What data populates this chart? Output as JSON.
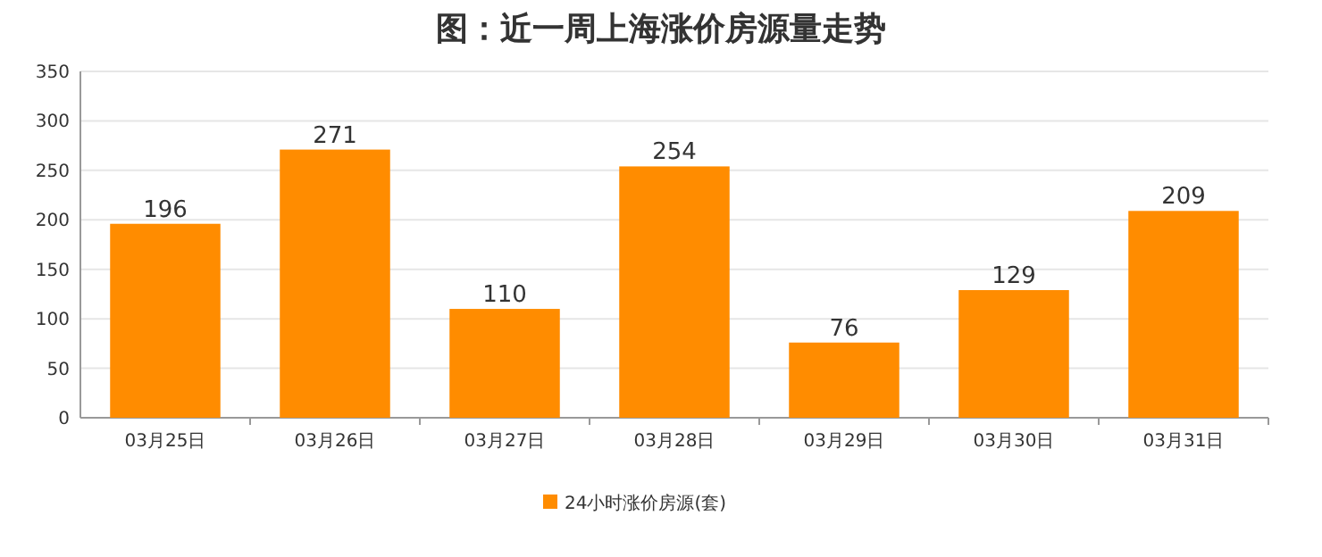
{
  "chart_data": {
    "type": "bar",
    "title": "图：近一周上海涨价房源量走势",
    "categories": [
      "03月25日",
      "03月26日",
      "03月27日",
      "03月28日",
      "03月29日",
      "03月30日",
      "03月31日"
    ],
    "series": [
      {
        "name": "24小时涨价房源(套)",
        "color": "#ff8c00",
        "values": [
          196,
          271,
          110,
          254,
          76,
          129,
          209
        ]
      }
    ],
    "ylim": [
      0,
      350
    ],
    "yticks": [
      0,
      50,
      100,
      150,
      200,
      250,
      300,
      350
    ],
    "grid": "y",
    "legend": "bottom",
    "data_labels": true
  }
}
